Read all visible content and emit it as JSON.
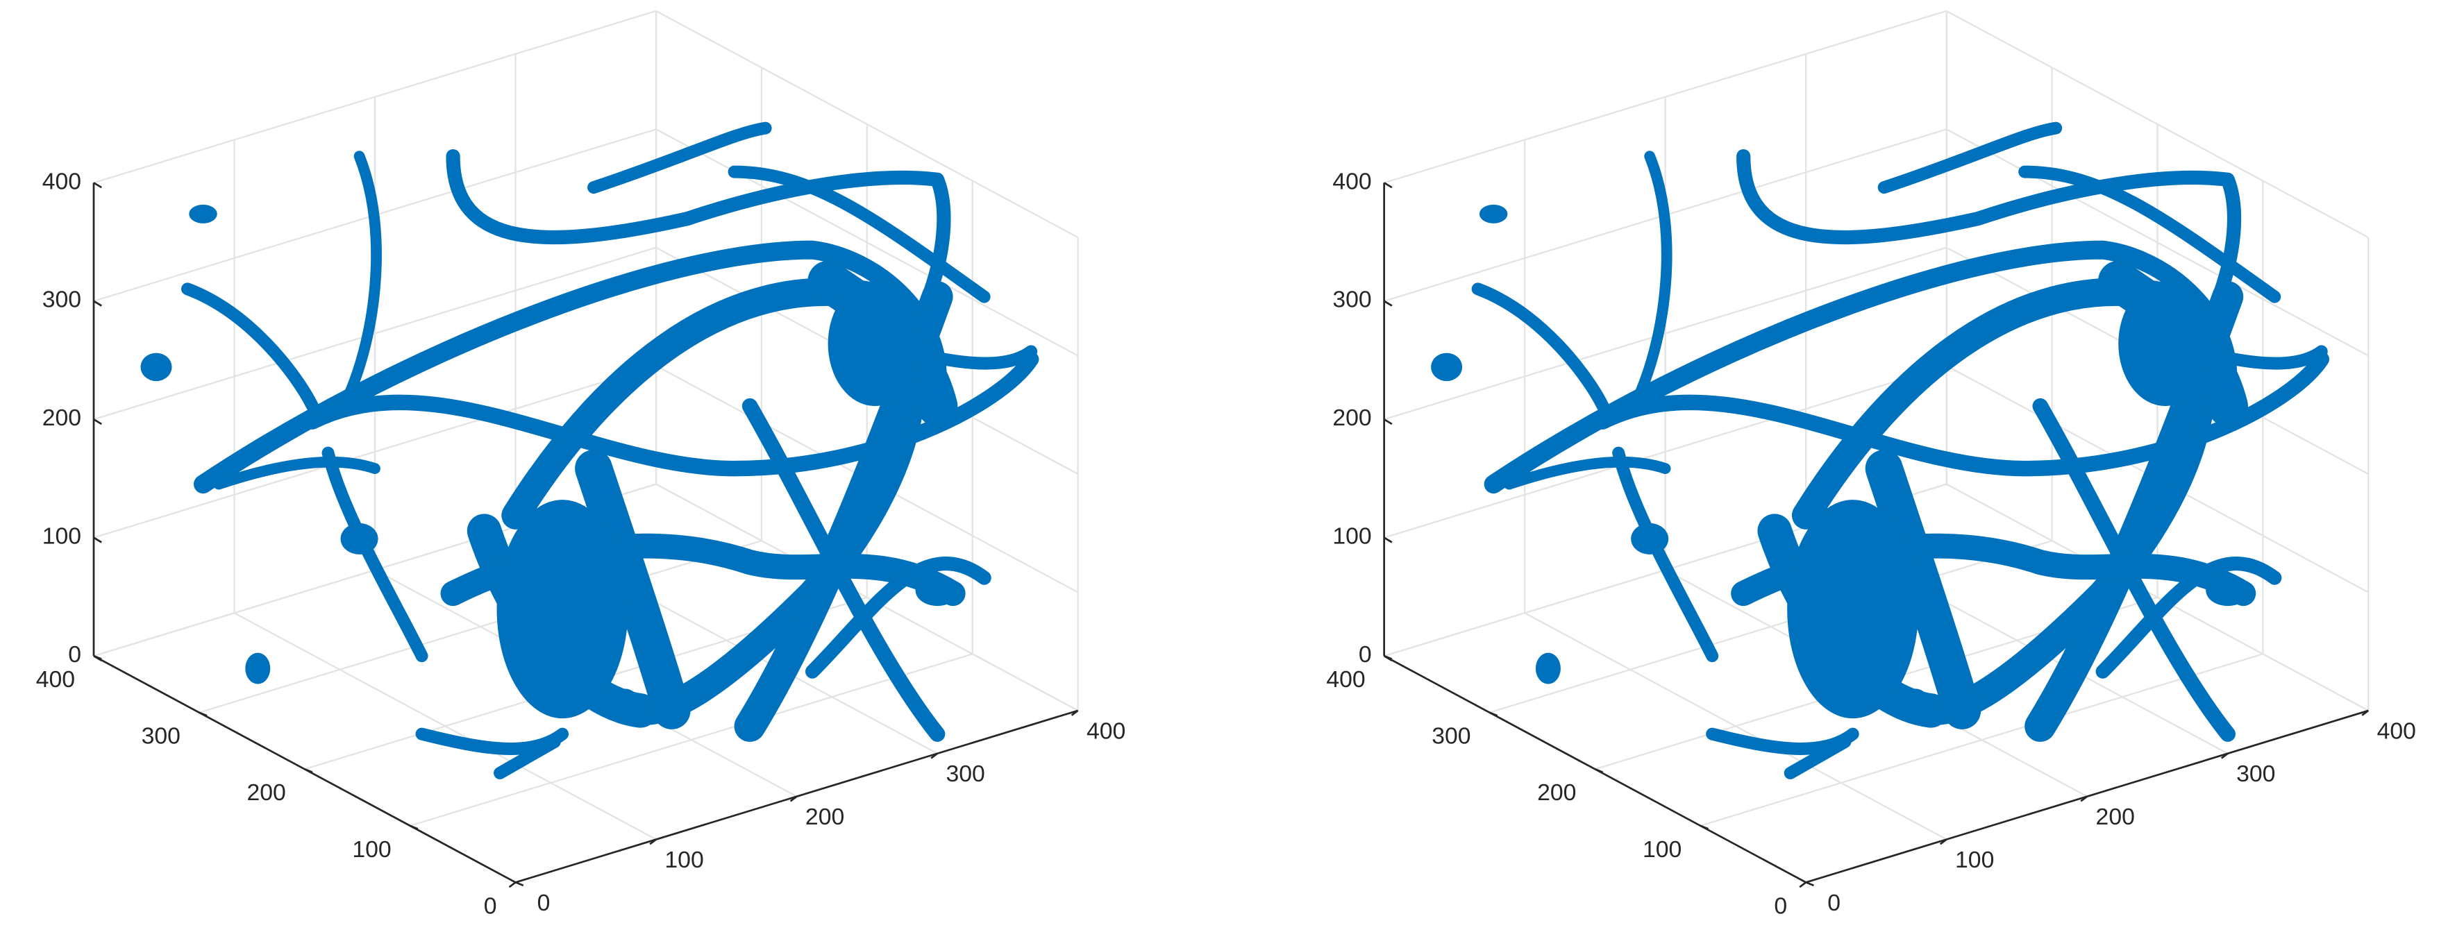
{
  "chart_data": [
    {
      "type": "scatter3d",
      "color": "#0072bd",
      "grid": true,
      "xlim": [
        0,
        400
      ],
      "ylim": [
        0,
        400
      ],
      "zlim": [
        0,
        400
      ],
      "xticks": [
        0,
        100,
        200,
        300,
        400
      ],
      "yticks": [
        0,
        100,
        200,
        300,
        400
      ],
      "zticks": [
        0,
        100,
        200,
        300,
        400
      ]
    },
    {
      "type": "scatter3d",
      "color": "#0072bd",
      "grid": true,
      "xlim": [
        0,
        400
      ],
      "ylim": [
        0,
        400
      ],
      "zlim": [
        0,
        400
      ],
      "xticks": [
        0,
        100,
        200,
        300,
        400
      ],
      "yticks": [
        0,
        100,
        200,
        300,
        400
      ],
      "zticks": [
        0,
        100,
        200,
        300,
        400
      ]
    }
  ]
}
